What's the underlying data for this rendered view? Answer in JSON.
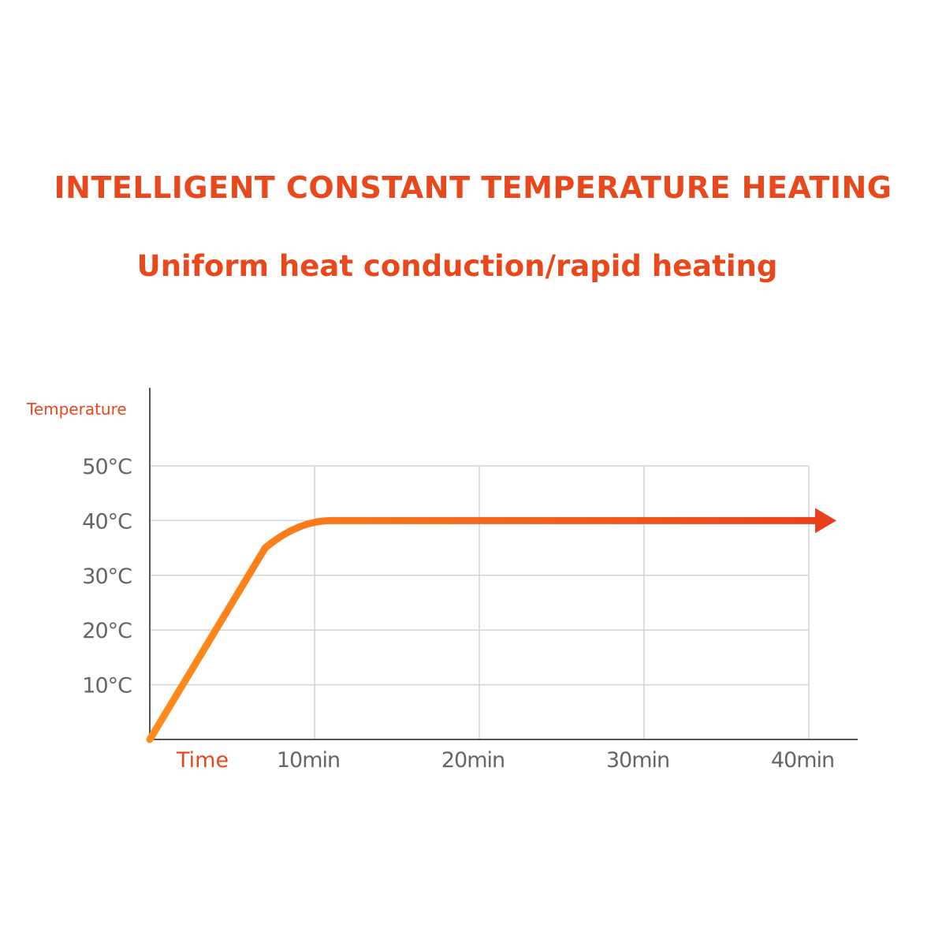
{
  "headline": "INTELLIGENT CONSTANT TEMPERATURE HEATING",
  "subheadline": "Uniform heat conduction/rapid heating",
  "colors": {
    "accent": "#e8481c",
    "curve_start": "#ff8c1a",
    "curve_end": "#e8401c",
    "grid": "#d4d4d4",
    "axis": "#555555"
  },
  "chart_data": {
    "type": "line",
    "title": "",
    "ylabel": "Temperature",
    "xlabel": "Time",
    "x_unit": "min",
    "y_unit": "°C",
    "xlim": [
      0,
      40
    ],
    "ylim": [
      0,
      50
    ],
    "x_ticks": [
      10,
      20,
      30,
      40
    ],
    "x_tick_labels": [
      "10min",
      "20min",
      "30min",
      "40min"
    ],
    "y_ticks": [
      10,
      20,
      30,
      40,
      50
    ],
    "y_tick_labels": [
      "10°C",
      "20°C",
      "30°C",
      "40°C",
      "50°C"
    ],
    "grid": true,
    "series": [
      {
        "x": [
          0,
          7,
          8,
          9,
          10,
          11,
          40
        ],
        "y": [
          0,
          35,
          37.5,
          39.2,
          40,
          40,
          40
        ],
        "arrow_end": true
      }
    ]
  }
}
